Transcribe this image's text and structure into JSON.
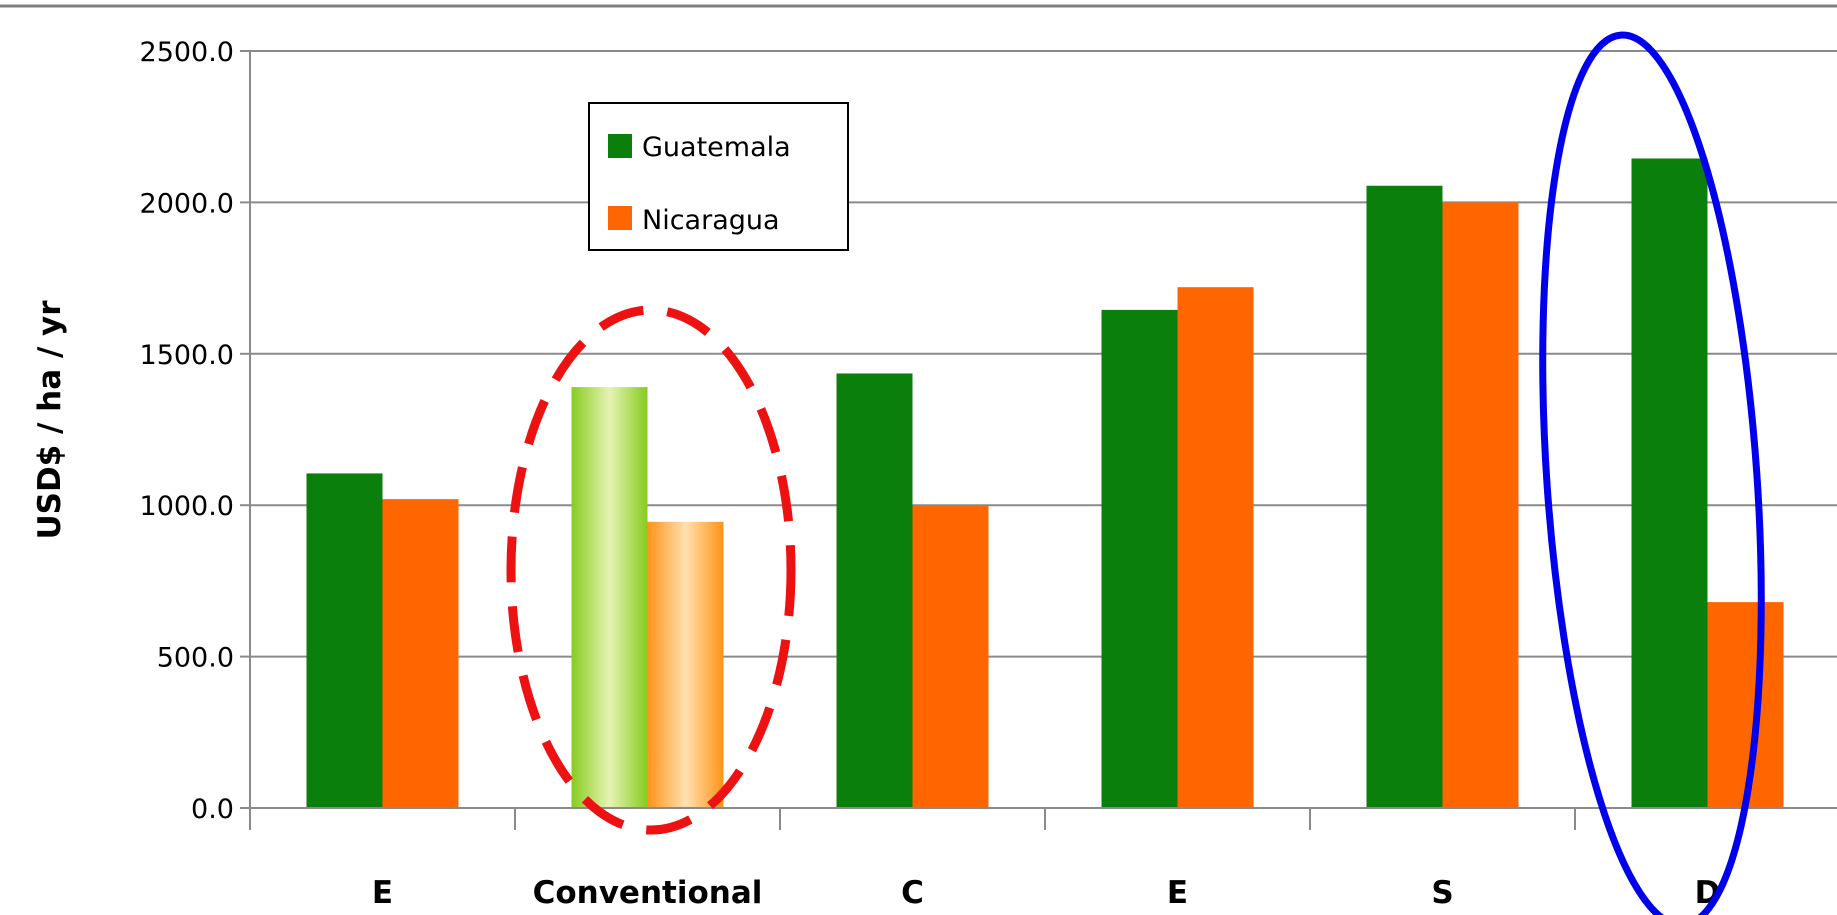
{
  "chart_data": {
    "type": "bar",
    "ylabel": "USD$ / ha / yr",
    "xlabel": "",
    "categories": [
      "E",
      "Conventional",
      "C",
      "E",
      "S",
      "D"
    ],
    "ylim": [
      0,
      2500
    ],
    "y_ticks": [
      "0.0",
      "500.0",
      "1000.0",
      "1500.0",
      "2000.0",
      "2500.0"
    ],
    "grid": true,
    "legend_position": "top-center",
    "series": [
      {
        "name": "Guatemala",
        "color": "#0b7f0b",
        "values": [
          1105,
          1390,
          1435,
          1645,
          2055,
          2145
        ]
      },
      {
        "name": "Nicaragua",
        "color": "#ff6600",
        "values": [
          1020,
          945,
          1000,
          1720,
          2000,
          680
        ]
      }
    ],
    "highlighted_series_colors": [
      "#8fd22a",
      "#ff9a2e"
    ],
    "annotations": [
      {
        "type": "ellipse",
        "style": "dashed",
        "color": "#ee1111",
        "category": "Conventional"
      },
      {
        "type": "ellipse",
        "style": "solid",
        "color": "#0000ee",
        "category": "D"
      }
    ]
  }
}
